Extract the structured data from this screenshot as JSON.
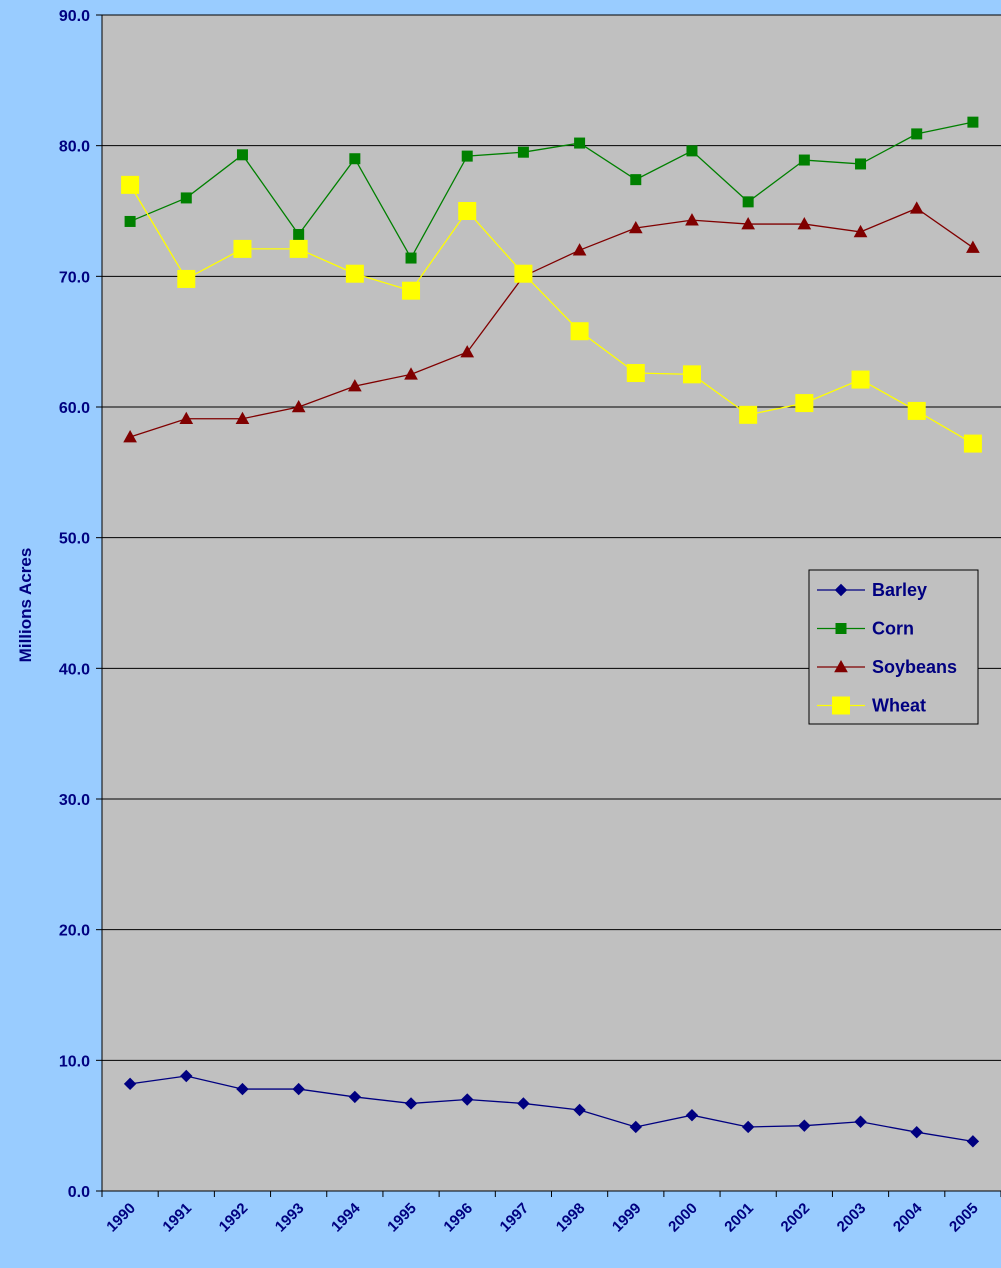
{
  "chart_data": {
    "type": "line",
    "title": "",
    "xlabel": "",
    "ylabel": "Millions Acres",
    "ylim": [
      0,
      90
    ],
    "y_ticks": [
      "0.0",
      "10.0",
      "20.0",
      "30.0",
      "40.0",
      "50.0",
      "60.0",
      "70.0",
      "80.0",
      "90.0"
    ],
    "categories": [
      "1990",
      "1991",
      "1992",
      "1993",
      "1994",
      "1995",
      "1996",
      "1997",
      "1998",
      "1999",
      "2000",
      "2001",
      "2002",
      "2003",
      "2004",
      "2005"
    ],
    "grid": "horizontal",
    "legend_position": "right",
    "plot_background": "#c0c0c0",
    "page_background": "#99ccff",
    "series": [
      {
        "name": "Barley",
        "color": "#000080",
        "marker": "diamond",
        "values": [
          8.2,
          8.8,
          7.8,
          7.8,
          7.2,
          6.7,
          7.0,
          6.7,
          6.2,
          4.9,
          5.8,
          4.9,
          5.0,
          5.3,
          4.5,
          3.8
        ]
      },
      {
        "name": "Corn",
        "color": "#008000",
        "marker": "square",
        "values": [
          74.2,
          76.0,
          79.3,
          73.2,
          79.0,
          71.4,
          79.2,
          79.5,
          80.2,
          77.4,
          79.6,
          75.7,
          78.9,
          78.6,
          80.9,
          81.8
        ]
      },
      {
        "name": "Soybeans",
        "color": "#800000",
        "marker": "triangle",
        "values": [
          57.7,
          59.1,
          59.1,
          60.0,
          61.6,
          62.5,
          64.2,
          70.0,
          72.0,
          73.7,
          74.3,
          74.0,
          74.0,
          73.4,
          75.2,
          72.2
        ]
      },
      {
        "name": "Wheat",
        "color": "#ffff00",
        "marker": "square-large",
        "values": [
          77.0,
          69.8,
          72.1,
          72.1,
          70.2,
          68.9,
          75.0,
          70.2,
          65.8,
          62.6,
          62.5,
          59.4,
          60.3,
          62.1,
          59.7,
          57.2
        ]
      }
    ]
  }
}
